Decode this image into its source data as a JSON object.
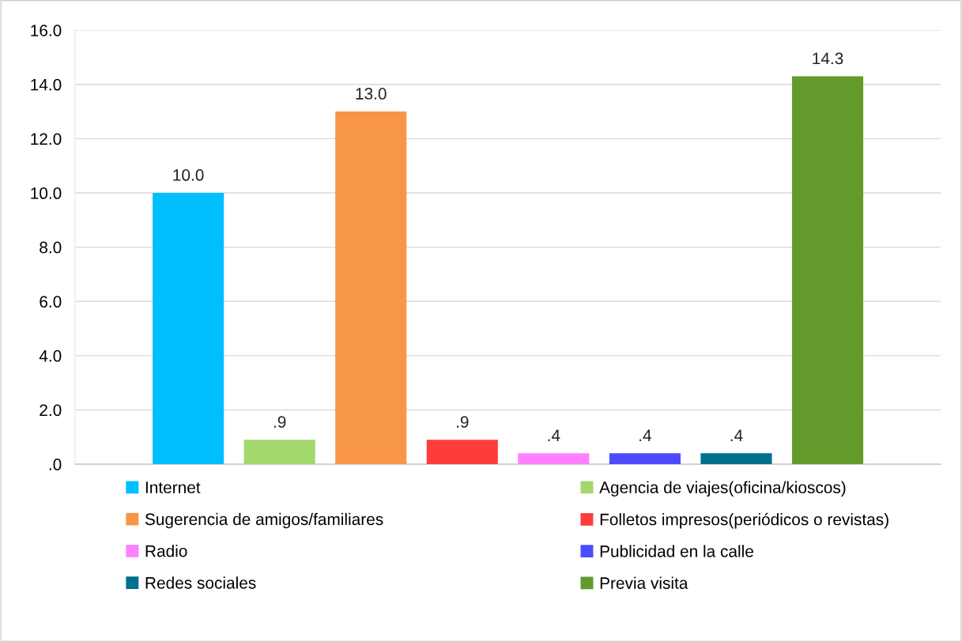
{
  "chart_data": {
    "type": "bar",
    "categories": [
      null
    ],
    "series": [
      {
        "name": "Internet",
        "color": "#00bfff",
        "values": [
          10.0
        ],
        "value_labels": [
          "10.0"
        ]
      },
      {
        "name": "Agencia de viajes(oficina/kioscos)",
        "color": "#a2d86c",
        "values": [
          0.9
        ],
        "value_labels": [
          ".9"
        ]
      },
      {
        "name": "Sugerencia de amigos/familiares",
        "color": "#f79646",
        "values": [
          13.0
        ],
        "value_labels": [
          "13.0"
        ]
      },
      {
        "name": "Folletos impresos(periódicos o revistas)",
        "color": "#ff3c3c",
        "values": [
          0.9
        ],
        "value_labels": [
          ".9"
        ]
      },
      {
        "name": "Radio",
        "color": "#ff80ff",
        "values": [
          0.4
        ],
        "value_labels": [
          ".4"
        ]
      },
      {
        "name": "Publicidad en la calle",
        "color": "#4b4bff",
        "values": [
          0.4
        ],
        "value_labels": [
          ".4"
        ]
      },
      {
        "name": "Redes sociales",
        "color": "#00708f",
        "values": [
          0.4
        ],
        "value_labels": [
          ".4"
        ]
      },
      {
        "name": "Previa visita",
        "color": "#629b2c",
        "values": [
          14.3
        ],
        "value_labels": [
          "14.3"
        ]
      }
    ],
    "ylim": [
      0,
      16
    ],
    "yticks": [
      {
        "value": 0,
        "label": ".0"
      },
      {
        "value": 2,
        "label": "2.0"
      },
      {
        "value": 4,
        "label": "4.0"
      },
      {
        "value": 6,
        "label": "6.0"
      },
      {
        "value": 8,
        "label": "8.0"
      },
      {
        "value": 10,
        "label": "10.0"
      },
      {
        "value": 12,
        "label": "12.0"
      },
      {
        "value": 14,
        "label": "14.0"
      },
      {
        "value": 16,
        "label": "16.0"
      }
    ],
    "grid": "y",
    "legend": "bottom"
  }
}
